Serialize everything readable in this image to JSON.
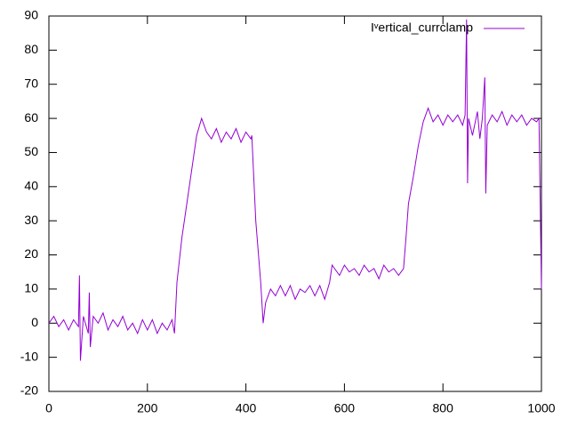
{
  "chart_data": {
    "type": "line",
    "x": [
      0,
      10,
      20,
      30,
      40,
      50,
      60,
      62,
      64,
      70,
      80,
      82,
      84,
      90,
      100,
      110,
      120,
      130,
      140,
      150,
      160,
      170,
      180,
      190,
      200,
      210,
      220,
      230,
      240,
      250,
      255,
      260,
      270,
      280,
      290,
      300,
      310,
      320,
      330,
      340,
      350,
      360,
      370,
      380,
      390,
      400,
      410,
      412,
      420,
      430,
      435,
      440,
      450,
      460,
      470,
      480,
      490,
      500,
      510,
      520,
      530,
      540,
      550,
      560,
      570,
      575,
      580,
      590,
      600,
      610,
      620,
      630,
      640,
      650,
      660,
      670,
      680,
      690,
      700,
      710,
      720,
      725,
      730,
      740,
      750,
      760,
      770,
      780,
      790,
      800,
      810,
      820,
      830,
      840,
      845,
      848,
      850,
      852,
      860,
      870,
      875,
      880,
      885,
      887,
      890,
      900,
      910,
      920,
      930,
      940,
      950,
      960,
      970,
      980,
      990,
      995,
      1000
    ],
    "series": [
      {
        "name": "Iᵛertical_currclamp",
        "color": "#9400d3",
        "values": [
          0,
          2,
          -1,
          1,
          -2,
          1,
          -1,
          14,
          -11,
          2,
          -3,
          9,
          -7,
          2,
          0,
          3,
          -2,
          1,
          -1,
          2,
          -2,
          0,
          -3,
          1,
          -2,
          1,
          -3,
          0,
          -2,
          1,
          -3,
          12,
          25,
          35,
          45,
          55,
          60,
          56,
          54,
          57,
          53,
          56,
          54,
          57,
          53,
          56,
          54,
          55,
          30,
          12,
          0,
          6,
          10,
          8,
          11,
          8,
          11,
          7,
          10,
          9,
          11,
          8,
          11,
          7,
          12,
          17,
          16,
          14,
          17,
          15,
          16,
          14,
          17,
          15,
          16,
          13,
          17,
          15,
          16,
          14,
          16,
          25,
          35,
          43,
          52,
          59,
          63,
          59,
          61,
          58,
          61,
          59,
          61,
          58,
          61,
          89,
          41,
          60,
          55,
          62,
          54,
          60,
          72,
          38,
          58,
          61,
          59,
          62,
          58,
          61,
          59,
          61,
          58,
          60,
          59,
          60,
          10
        ]
      }
    ],
    "xlim": [
      0,
      1000
    ],
    "xticks": [
      0,
      200,
      400,
      600,
      800,
      1000
    ],
    "ylim": [
      -20,
      90
    ],
    "yticks": [
      -20,
      -10,
      0,
      10,
      20,
      30,
      40,
      50,
      60,
      70,
      80,
      90
    ],
    "legend": "top-right"
  }
}
